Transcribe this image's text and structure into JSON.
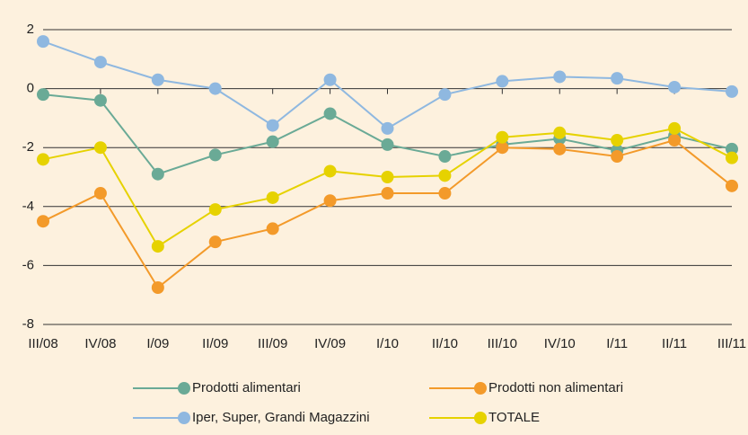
{
  "chart_data": {
    "type": "line",
    "categories": [
      "III/08",
      "IV/08",
      "I/09",
      "II/09",
      "III/09",
      "IV/09",
      "I/10",
      "II/10",
      "III/10",
      "IV/10",
      "I/11",
      "II/11",
      "III/11"
    ],
    "series": [
      {
        "name": "Prodotti alimentari",
        "color": "#6aaa96",
        "values": [
          -0.2,
          -0.4,
          -2.9,
          -2.25,
          -1.8,
          -0.85,
          -1.9,
          -2.3,
          -1.9,
          -1.7,
          -2.1,
          -1.6,
          -2.05
        ]
      },
      {
        "name": "Prodotti non alimentari",
        "color": "#f39a2a",
        "values": [
          -4.5,
          -3.55,
          -6.75,
          -5.2,
          -4.75,
          -3.8,
          -3.55,
          -3.55,
          -2.0,
          -2.05,
          -2.3,
          -1.75,
          -3.3
        ]
      },
      {
        "name": "Iper, Super, Grandi Magazzini",
        "color": "#8fb8e0",
        "values": [
          1.6,
          0.9,
          0.3,
          0.0,
          -1.25,
          0.3,
          -1.35,
          -0.2,
          0.25,
          0.4,
          0.35,
          0.05,
          -0.1
        ]
      },
      {
        "name": "TOTALE",
        "color": "#e6d200",
        "values": [
          -2.4,
          -2.0,
          -5.35,
          -4.1,
          -3.7,
          -2.8,
          -3.0,
          -2.95,
          -1.65,
          -1.5,
          -1.75,
          -1.35,
          -2.35
        ]
      }
    ],
    "ylim": [
      -8,
      2
    ],
    "yticks": [
      -8,
      -6,
      -4,
      -2,
      0,
      2
    ],
    "grid": true,
    "legend": "bottom"
  }
}
